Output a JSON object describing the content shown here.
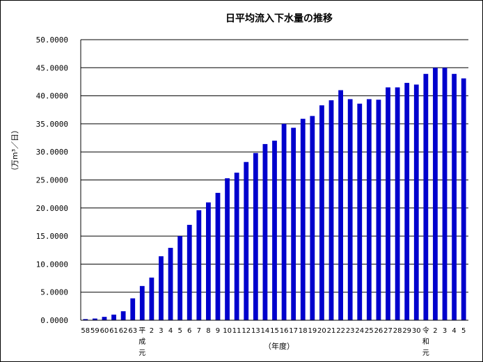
{
  "chart_data": {
    "type": "bar",
    "title": "日平均流入下水量の推移",
    "xlabel": "（年度）",
    "ylabel": "（万m³／日）",
    "ylim": [
      0,
      50
    ],
    "ytick_labels": [
      "0.0000",
      "5.0000",
      "10.0000",
      "15.0000",
      "20.0000",
      "25.0000",
      "30.0000",
      "35.0000",
      "40.0000",
      "45.0000",
      "50.0000"
    ],
    "grid": true,
    "series_color": "#0000CC",
    "categories": [
      "58",
      "59",
      "60",
      "61",
      "62",
      "63",
      "平成元",
      "2",
      "3",
      "4",
      "5",
      "6",
      "7",
      "8",
      "9",
      "10",
      "11",
      "12",
      "13",
      "14",
      "15",
      "16",
      "17",
      "18",
      "19",
      "20",
      "21",
      "22",
      "23",
      "24",
      "25",
      "26",
      "27",
      "28",
      "29",
      "30",
      "令和元",
      "2",
      "3",
      "4",
      "5"
    ],
    "values": [
      0.2,
      0.3,
      0.6,
      1.0,
      1.6,
      3.9,
      6.1,
      7.6,
      11.4,
      12.9,
      15.0,
      17.0,
      19.6,
      21.0,
      22.7,
      25.3,
      26.3,
      28.2,
      29.8,
      31.4,
      32.0,
      35.0,
      34.3,
      35.9,
      36.4,
      38.3,
      39.2,
      41.0,
      39.4,
      38.6,
      39.4,
      39.3,
      41.5,
      41.5,
      42.3,
      42.0,
      43.9,
      45.0,
      45.0,
      43.9,
      43.1
    ]
  }
}
